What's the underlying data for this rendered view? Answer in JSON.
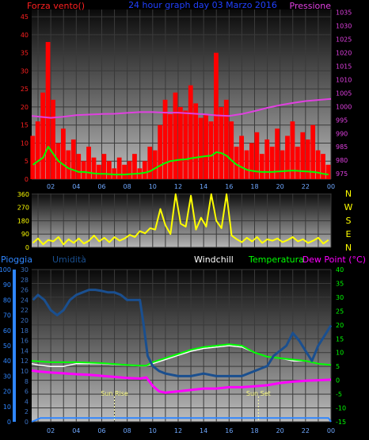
{
  "chart_data": [
    {
      "type": "line",
      "title": "24 hour graph day  03 Marzo 2016",
      "ylabel_left": "Forza vento()",
      "ylabel_right": "Pressione",
      "x_ticks": [
        "02",
        "04",
        "06",
        "08",
        "10",
        "12",
        "14",
        "16",
        "18",
        "20",
        "22",
        "00"
      ],
      "x_range": [
        0.5,
        24
      ],
      "y_left_ticks": [
        0,
        5,
        10,
        15,
        20,
        25,
        30,
        35,
        40,
        45
      ],
      "y_left_range": [
        0,
        47
      ],
      "y_right_ticks": [
        975,
        980,
        985,
        990,
        995,
        1000,
        1005,
        1010,
        1015,
        1020,
        1025,
        1030,
        1035
      ],
      "y_right_range": [
        973,
        1036
      ],
      "grid": true,
      "series": [
        {
          "name": "Forza vento()",
          "color": "#ff0000",
          "style": "bars",
          "x": [
            0.6,
            1.0,
            1.4,
            1.8,
            2.2,
            2.6,
            3.0,
            3.4,
            3.8,
            4.2,
            4.6,
            5.0,
            5.4,
            5.8,
            6.2,
            6.6,
            7.0,
            7.4,
            7.8,
            8.2,
            8.6,
            9.0,
            9.4,
            9.8,
            10.2,
            10.6,
            11.0,
            11.4,
            11.8,
            12.2,
            12.6,
            13.0,
            13.4,
            13.8,
            14.2,
            14.6,
            15.0,
            15.4,
            15.8,
            16.2,
            16.6,
            17.0,
            17.4,
            17.8,
            18.2,
            18.6,
            19.0,
            19.4,
            19.8,
            20.2,
            20.6,
            21.0,
            21.4,
            21.8,
            22.2,
            22.6,
            23.0,
            23.4,
            23.8
          ],
          "values": [
            12,
            16,
            24,
            38,
            22,
            10,
            14,
            8,
            11,
            7,
            5,
            9,
            6,
            4,
            7,
            5,
            3,
            6,
            4,
            5,
            7,
            3,
            5,
            9,
            8,
            15,
            22,
            18,
            24,
            20,
            19,
            26,
            21,
            17,
            18,
            16,
            35,
            20,
            22,
            16,
            9,
            12,
            8,
            10,
            13,
            7,
            11,
            9,
            14,
            8,
            12,
            16,
            9,
            13,
            11,
            15,
            8,
            7,
            4
          ]
        },
        {
          "name": "",
          "color": "#00ff00",
          "style": "line",
          "x": [
            0.6,
            1.0,
            1.4,
            1.8,
            2.2,
            2.6,
            3.0,
            3.4,
            3.8,
            4.2,
            4.6,
            5.0,
            5.4,
            5.8,
            6.2,
            6.6,
            7.0,
            7.4,
            7.8,
            8.2,
            8.6,
            9.0,
            9.4,
            9.8,
            10.2,
            10.6,
            11.0,
            11.4,
            11.8,
            12.2,
            12.6,
            13.0,
            13.4,
            13.8,
            14.2,
            14.6,
            15.0,
            15.4,
            15.8,
            16.2,
            16.6,
            17.0,
            17.4,
            17.8,
            18.2,
            18.6,
            19.0,
            19.4,
            19.8,
            20.2,
            20.6,
            21.0,
            21.4,
            21.8,
            22.2,
            22.6,
            23.0,
            23.4,
            23.8
          ],
          "values": [
            4,
            5,
            6,
            9,
            7,
            5,
            4,
            3,
            2.5,
            2,
            2,
            1.8,
            1.6,
            1.5,
            1.5,
            1.4,
            1.3,
            1.3,
            1.3,
            1.4,
            1.5,
            1.6,
            1.8,
            2.2,
            3,
            3.8,
            4.5,
            5,
            5.2,
            5.4,
            5.5,
            5.8,
            6,
            6.2,
            6.4,
            6.5,
            7.5,
            7.2,
            6.5,
            5.2,
            4,
            3.3,
            2.6,
            2.3,
            2.1,
            2,
            2,
            2,
            2.1,
            2.2,
            2.3,
            2.4,
            2.3,
            2.2,
            2.1,
            2,
            1.8,
            1.5,
            1.3
          ]
        },
        {
          "name": "Pressione",
          "color": "#e040e0",
          "style": "line",
          "axis": "right",
          "x": [
            0.5,
            2,
            3,
            4,
            5,
            6,
            7,
            8,
            9,
            10,
            11,
            12,
            13,
            14,
            15,
            16,
            17,
            18,
            19,
            20,
            21,
            22,
            23,
            24
          ],
          "values": [
            996.5,
            995.8,
            996.2,
            996.8,
            997,
            997.2,
            997.3,
            997.6,
            997.9,
            997.9,
            997.7,
            997.7,
            997.4,
            997.1,
            996.7,
            996.5,
            997.2,
            998.3,
            999.5,
            1000.5,
            1001.3,
            1002,
            1002.4,
            1002.8
          ]
        }
      ]
    },
    {
      "type": "line",
      "x_ticks": [
        "02",
        "04",
        "06",
        "08",
        "10",
        "12",
        "14",
        "16",
        "18",
        "20",
        "22",
        "00"
      ],
      "x_range": [
        0.5,
        24
      ],
      "y_left_ticks": [
        0,
        90,
        180,
        270,
        360
      ],
      "y_left_range": [
        0,
        365
      ],
      "compass_labels": [
        "N",
        "W",
        "S",
        "E",
        "N"
      ],
      "grid": true,
      "series": [
        {
          "name": "",
          "color": "#ffff00",
          "x": [
            0.6,
            1.0,
            1.4,
            1.8,
            2.2,
            2.6,
            3.0,
            3.4,
            3.8,
            4.2,
            4.6,
            5.0,
            5.4,
            5.8,
            6.2,
            6.6,
            7.0,
            7.4,
            7.8,
            8.2,
            8.6,
            9.0,
            9.4,
            9.8,
            10.2,
            10.6,
            11.0,
            11.4,
            11.8,
            12.2,
            12.6,
            13.0,
            13.4,
            13.8,
            14.2,
            14.6,
            15.0,
            15.4,
            15.8,
            16.2,
            16.6,
            17.0,
            17.4,
            17.8,
            18.2,
            18.6,
            19.0,
            19.4,
            19.8,
            20.2,
            20.6,
            21.0,
            21.4,
            21.8,
            22.2,
            22.6,
            23.0,
            23.4,
            23.8
          ],
          "values": [
            30,
            60,
            20,
            50,
            40,
            70,
            20,
            55,
            30,
            60,
            25,
            45,
            80,
            40,
            65,
            35,
            70,
            45,
            60,
            85,
            70,
            110,
            95,
            130,
            120,
            260,
            150,
            90,
            360,
            160,
            140,
            350,
            120,
            200,
            140,
            360,
            180,
            130,
            360,
            80,
            55,
            35,
            65,
            40,
            70,
            30,
            55,
            45,
            60,
            35,
            50,
            70,
            40,
            55,
            30,
            45,
            65,
            25,
            50
          ]
        }
      ]
    },
    {
      "type": "line",
      "ylabel_left": "Pioggia",
      "ylabel_left2": "Umidità",
      "legend_labels": [
        "Windchill",
        "Temperatura",
        "Dew Point (°C)"
      ],
      "x_ticks": [
        "02",
        "04",
        "06",
        "08",
        "10",
        "12",
        "14",
        "16",
        "18",
        "20",
        "22",
        "00"
      ],
      "x_range": [
        0.5,
        24
      ],
      "y_rain_ticks": [
        0,
        10,
        20,
        30,
        40,
        50,
        60,
        70,
        80,
        90,
        100
      ],
      "y_rain_range": [
        0,
        100
      ],
      "y_hum_ticks": [
        0,
        2,
        4,
        6,
        8,
        10,
        12,
        14,
        16,
        18,
        20,
        22,
        24,
        26,
        28,
        30
      ],
      "y_hum_range": [
        0,
        30
      ],
      "y_temp_ticks": [
        -15,
        -10,
        -5,
        0,
        5,
        10,
        15,
        20,
        25,
        30,
        35,
        40
      ],
      "y_temp_range": [
        -15,
        40
      ],
      "annotations": [
        {
          "text": "Sun Rise",
          "x": 7
        },
        {
          "text": "Sun Set",
          "x": 18.3
        }
      ],
      "grid": true,
      "series": [
        {
          "name": "Umidità",
          "color": "#1a4f8f",
          "axis": "humidity",
          "x": [
            0.6,
            1.0,
            1.5,
            2.0,
            2.5,
            3.0,
            3.5,
            4.0,
            4.5,
            5.0,
            5.5,
            6.0,
            6.5,
            7.0,
            7.5,
            8.0,
            8.5,
            9.0,
            9.3,
            9.6,
            10.0,
            10.5,
            11,
            12,
            13,
            14,
            15,
            16,
            17,
            18,
            19,
            19.5,
            20,
            20.5,
            21,
            21.5,
            22,
            22.5,
            23,
            23.5,
            24
          ],
          "values": [
            24,
            25,
            24,
            22,
            21,
            22,
            24,
            25,
            25.5,
            26,
            26,
            25.8,
            25.5,
            25.5,
            25,
            24,
            24,
            24,
            19,
            13,
            11,
            10,
            9.5,
            9,
            9,
            9.5,
            9,
            9,
            9,
            10,
            11,
            13,
            14,
            15,
            17.5,
            16,
            14,
            12,
            15,
            17,
            19
          ]
        },
        {
          "name": "Temperatura",
          "color": "#00ff00",
          "axis": "temperature",
          "x": [
            0.5,
            2,
            4,
            6,
            8,
            9,
            9.5,
            10,
            11,
            12,
            13,
            14,
            15,
            16,
            17,
            18,
            19,
            20,
            21,
            22,
            23,
            24
          ],
          "values": [
            7,
            6.5,
            6.5,
            6.2,
            5.5,
            5.3,
            5.3,
            6.5,
            8,
            9.5,
            11,
            12,
            12.5,
            13,
            12.5,
            10,
            8.5,
            8,
            7.5,
            7,
            6,
            5.5
          ]
        },
        {
          "name": "Windchill",
          "color": "#ffffff",
          "axis": "temperature",
          "x": [
            0.5,
            1,
            2,
            3,
            4,
            6,
            8,
            9,
            9.5,
            10,
            11,
            12,
            13,
            14,
            15,
            16,
            17,
            18,
            19,
            20,
            21,
            22,
            23,
            24
          ],
          "values": [
            6,
            5.5,
            5,
            5,
            6,
            6,
            5.4,
            5.2,
            5.2,
            6,
            7.5,
            9,
            10.5,
            11.5,
            12,
            12.5,
            12,
            10,
            8.5,
            8,
            7,
            7,
            6,
            5.5
          ]
        },
        {
          "name": "Dew Point (°C)",
          "color": "#ff00ff",
          "axis": "temperature",
          "x": [
            0.5,
            1,
            2,
            3,
            4,
            5,
            6,
            7,
            8,
            9,
            9.5,
            10,
            10.5,
            11,
            12,
            13,
            14,
            15,
            16,
            17,
            18,
            19,
            20,
            21,
            22,
            23,
            24
          ],
          "values": [
            3.5,
            3.2,
            2.8,
            2.5,
            2.2,
            2.0,
            1.6,
            1.2,
            0.8,
            0.6,
            1,
            -2,
            -4,
            -4.5,
            -4,
            -3.5,
            -3,
            -3,
            -2.5,
            -2.5,
            -2.2,
            -1.8,
            -1,
            -0.5,
            -0.2,
            0,
            0.2
          ]
        },
        {
          "name": "Pioggia",
          "color": "#2f86ff",
          "axis": "rain",
          "x": [
            0.5,
            0.8,
            1.2,
            4,
            8,
            12,
            16,
            20,
            23.8,
            24
          ],
          "values": [
            0,
            1,
            2.5,
            2.5,
            2.5,
            2.5,
            2.5,
            2.5,
            2.5,
            0
          ]
        }
      ]
    }
  ]
}
